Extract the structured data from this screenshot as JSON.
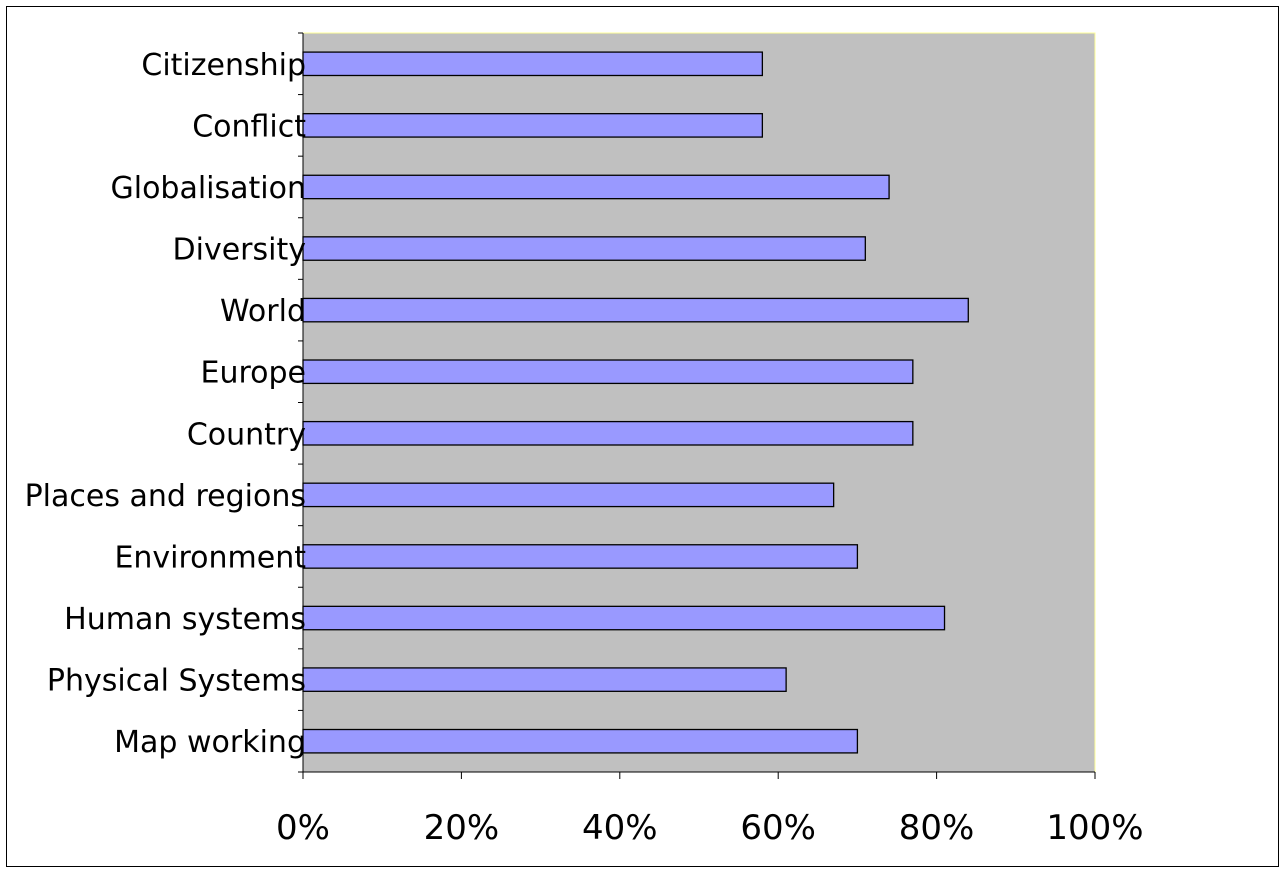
{
  "chart_data": {
    "type": "bar",
    "orientation": "horizontal",
    "categories": [
      "Citizenship",
      "Conflict",
      "Globalisation",
      "Diversity",
      "World",
      "Europe",
      "Country",
      "Places and regions",
      "Environment",
      "Human systems",
      "Physical Systems",
      "Map working"
    ],
    "values": [
      0.58,
      0.58,
      0.74,
      0.71,
      0.84,
      0.77,
      0.77,
      0.67,
      0.7,
      0.81,
      0.61,
      0.7
    ],
    "xlim": [
      0,
      1
    ],
    "x_ticks": [
      0,
      0.2,
      0.4,
      0.6,
      0.8,
      1.0
    ],
    "x_tick_labels": [
      "0%",
      "20%",
      "40%",
      "60%",
      "80%",
      "100%"
    ],
    "title": "",
    "xlabel": "",
    "ylabel": "",
    "grid": false,
    "legend": "none",
    "colors": {
      "bar_fill": "#9999ff",
      "bar_stroke": "#000000",
      "plot_background": "#c0c0c0",
      "plot_border": "#ffff99",
      "page_background": "#ffffff"
    }
  }
}
